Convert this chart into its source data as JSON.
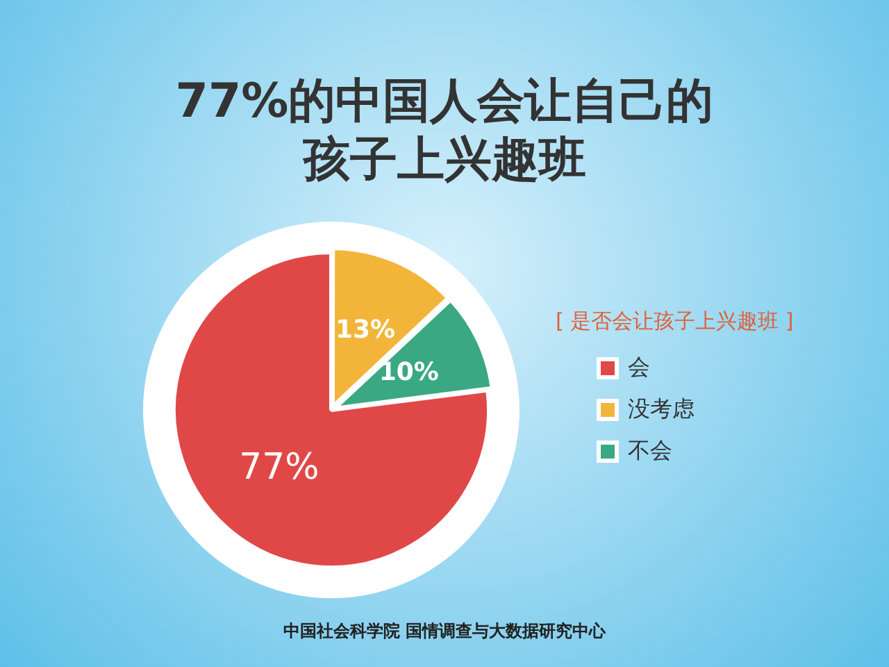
{
  "chart_data": {
    "type": "pie",
    "title": "77%的中国人会让自己的孩子上兴趣班",
    "legend_title": "[ 是否会让孩子上兴趣班 ]",
    "categories": [
      "会",
      "没考虑",
      "不会"
    ],
    "values": [
      77,
      13,
      10
    ],
    "colors": [
      "#e04848",
      "#f2b53a",
      "#3aa882"
    ],
    "value_labels": [
      "77%",
      "13%",
      "10%"
    ],
    "legend": "right",
    "annotations": [
      "中国社会科学院 国情调查与大数据研究中心"
    ]
  }
}
